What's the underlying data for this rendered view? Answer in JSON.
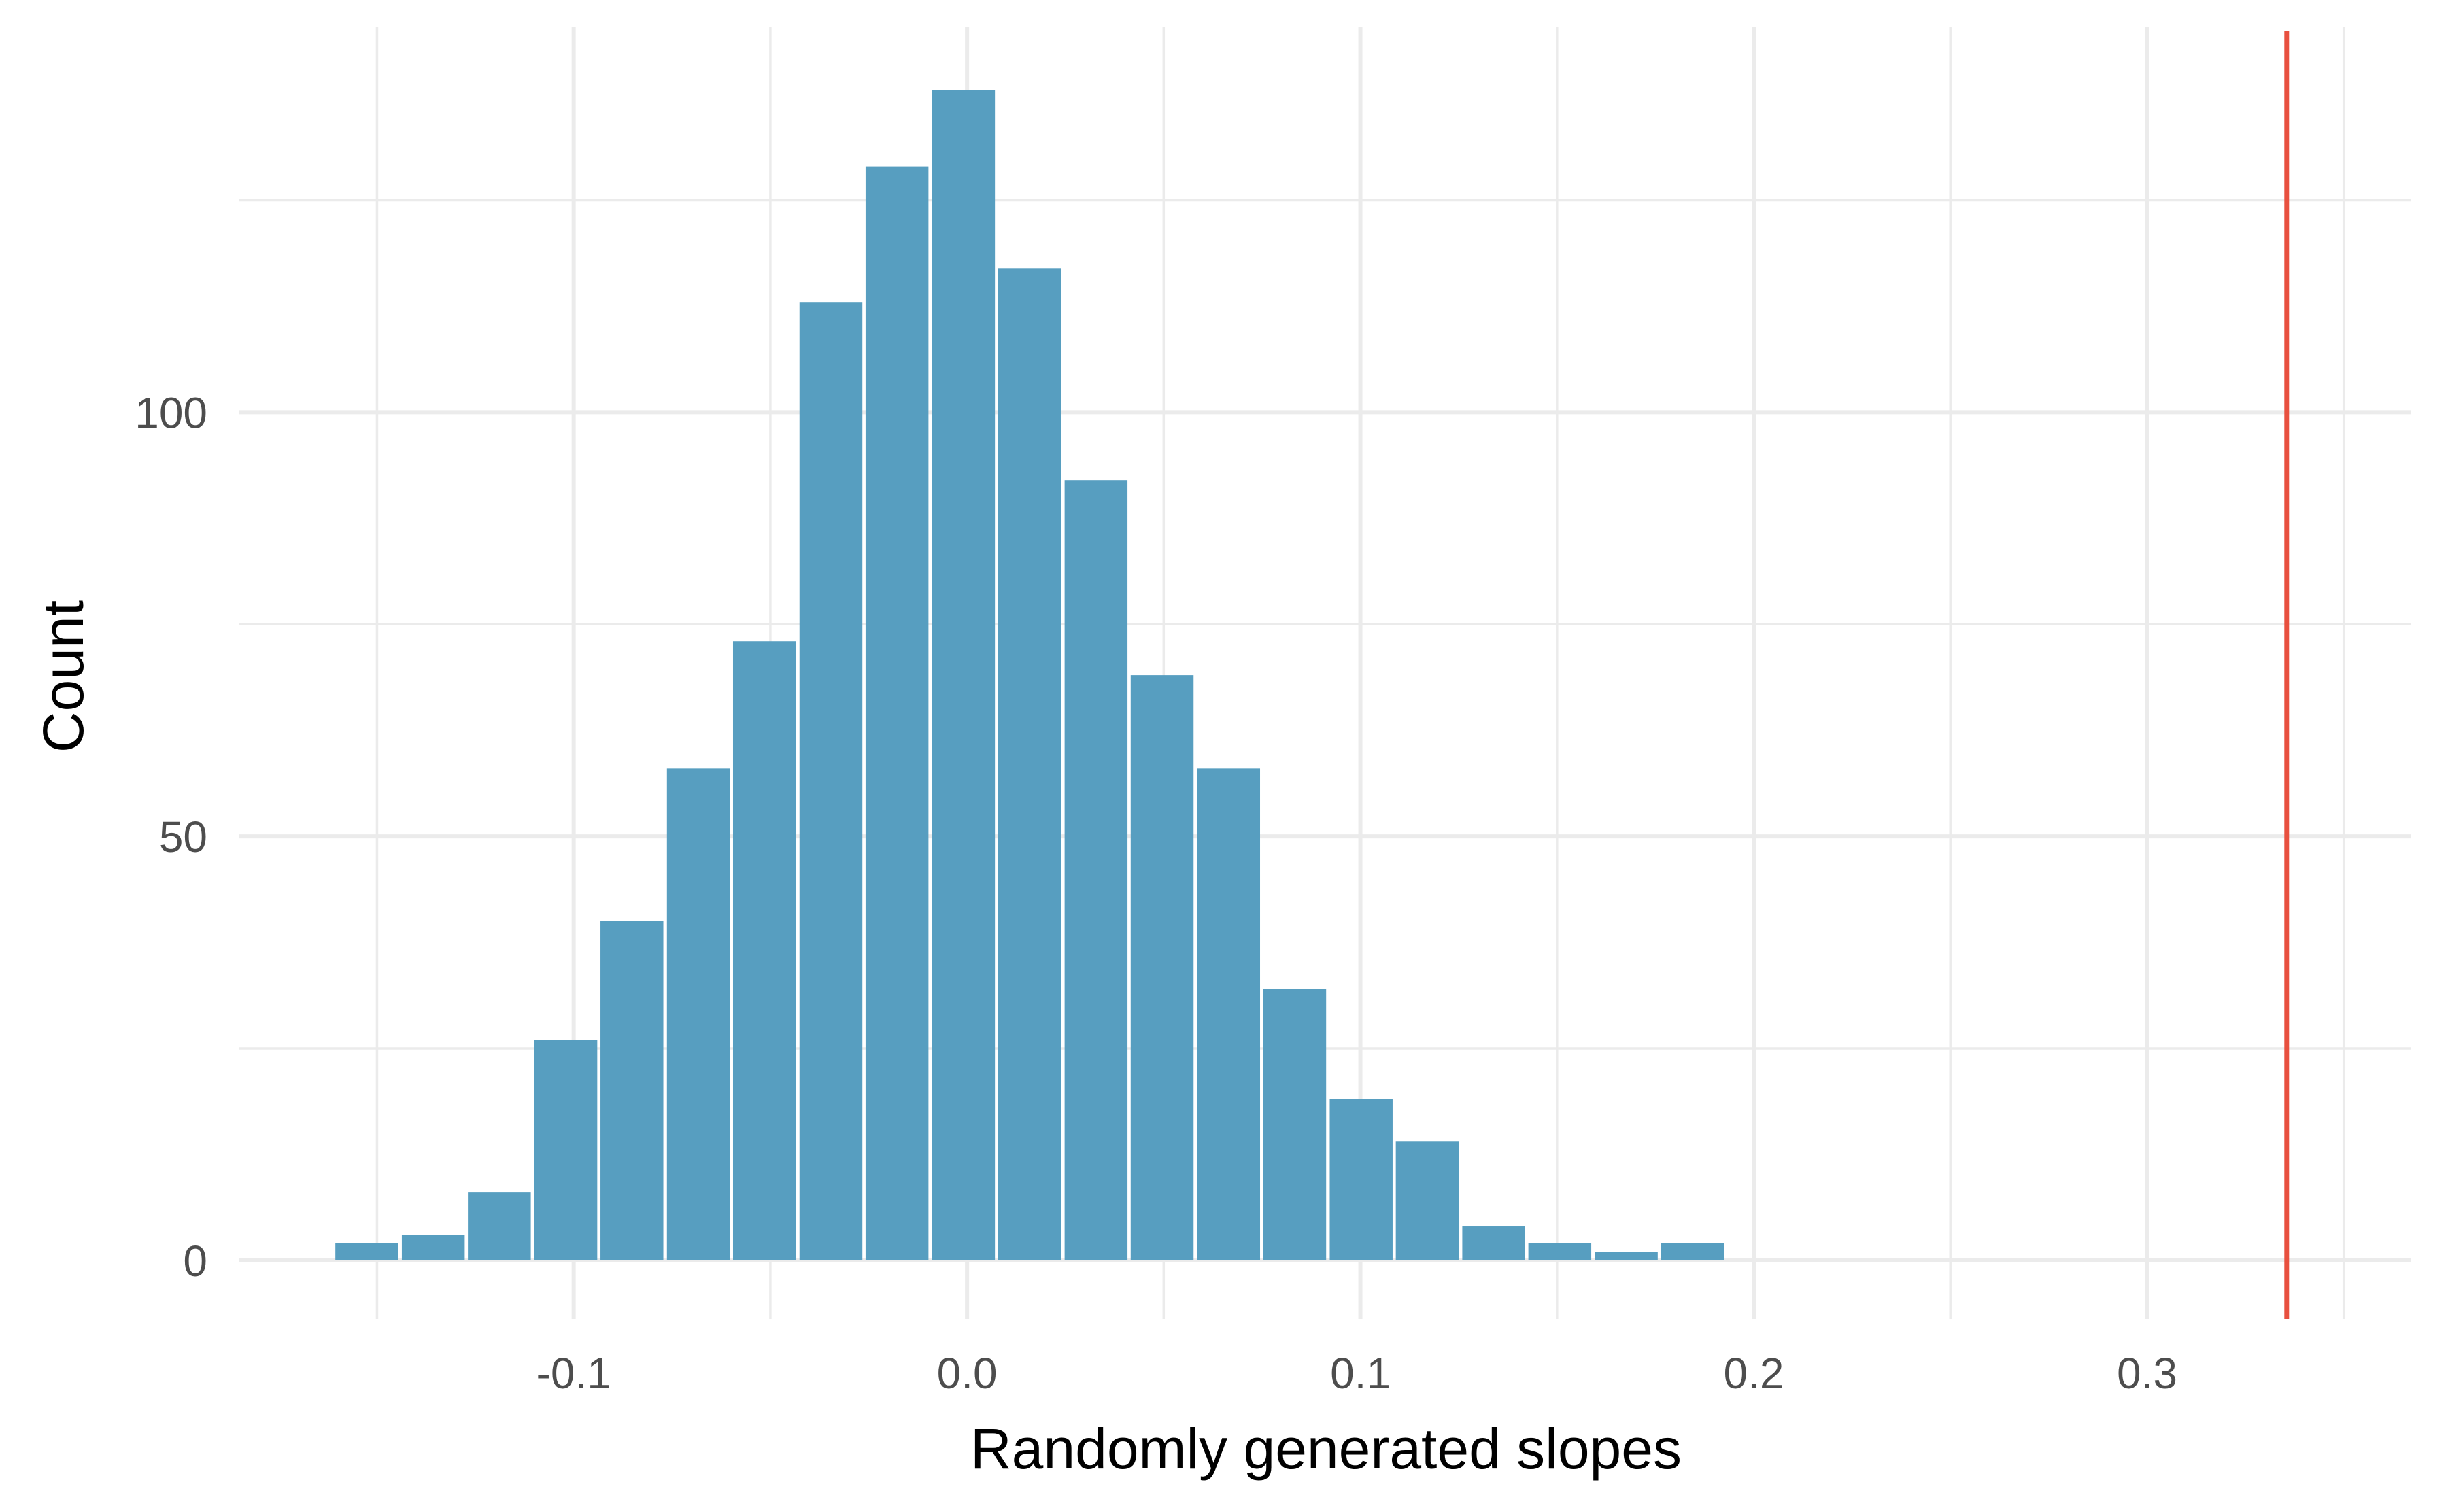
{
  "chart_data": {
    "type": "bar",
    "xlabel": "Randomly generated slopes",
    "ylabel": "Count",
    "xlim": [
      -0.185,
      0.367
    ],
    "ylim": [
      -6.9,
      145.4
    ],
    "x_ticks": [
      -0.1,
      0.0,
      0.1,
      0.2,
      0.3
    ],
    "x_tick_labels": [
      "-0.1",
      "0.0",
      "0.1",
      "0.2",
      "0.3"
    ],
    "y_ticks": [
      0,
      50,
      100
    ],
    "y_tick_labels": [
      "0",
      "50",
      "100"
    ],
    "bin_width": 0.01685,
    "bins": [
      {
        "x": -0.1526,
        "count": 2
      },
      {
        "x": -0.1357,
        "count": 3
      },
      {
        "x": -0.1189,
        "count": 8
      },
      {
        "x": -0.102,
        "count": 26
      },
      {
        "x": -0.0852,
        "count": 40
      },
      {
        "x": -0.0683,
        "count": 58
      },
      {
        "x": -0.0515,
        "count": 73
      },
      {
        "x": -0.0346,
        "count": 113
      },
      {
        "x": -0.0178,
        "count": 129
      },
      {
        "x": -0.0009,
        "count": 138
      },
      {
        "x": 0.0159,
        "count": 117
      },
      {
        "x": 0.0328,
        "count": 92
      },
      {
        "x": 0.0496,
        "count": 69
      },
      {
        "x": 0.0665,
        "count": 58
      },
      {
        "x": 0.0833,
        "count": 32
      },
      {
        "x": 0.1002,
        "count": 19
      },
      {
        "x": 0.117,
        "count": 14
      },
      {
        "x": 0.1339,
        "count": 4
      },
      {
        "x": 0.1507,
        "count": 2
      },
      {
        "x": 0.1676,
        "count": 1
      },
      {
        "x": 0.1844,
        "count": 2
      },
      {
        "x": 0.2013,
        "count": 0
      },
      {
        "x": 0.2181,
        "count": 0
      },
      {
        "x": 0.235,
        "count": 0
      },
      {
        "x": 0.2518,
        "count": 0
      },
      {
        "x": 0.2687,
        "count": 0
      },
      {
        "x": 0.2855,
        "count": 0
      },
      {
        "x": 0.3024,
        "count": 0
      },
      {
        "x": 0.3192,
        "count": 0
      },
      {
        "x": 0.3361,
        "count": 0
      }
    ],
    "reference_line": {
      "x": 0.3355,
      "color": "#e8503f"
    },
    "bar_color": "#579ec0",
    "grid": true,
    "legend": "none"
  }
}
